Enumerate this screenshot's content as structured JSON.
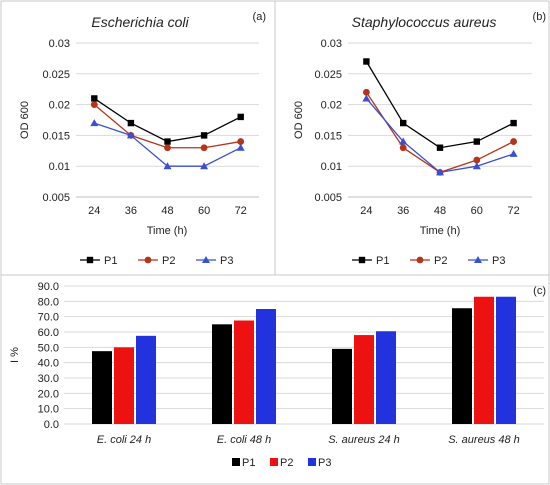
{
  "colors": {
    "P1": "#000000",
    "P2": "#b5341a",
    "P3": "#3a4fd1",
    "bar_P1": "#000000",
    "bar_P2": "#ee1111",
    "bar_P3": "#2233dd"
  },
  "chart_data": [
    {
      "type": "line",
      "panel_label": "(a)",
      "title": "Escherichia coli",
      "xlabel": "Time (h)",
      "ylabel": "OD 600",
      "categories": [
        "24",
        "36",
        "48",
        "60",
        "72"
      ],
      "y_ticks": [
        "0.005",
        "0.01",
        "0.015",
        "0.02",
        "0.025",
        "0.03"
      ],
      "ylim": [
        0.005,
        0.03
      ],
      "grid": true,
      "legend": "bottom",
      "series": [
        {
          "name": "P1",
          "values": [
            0.021,
            0.017,
            0.014,
            0.015,
            0.018
          ]
        },
        {
          "name": "P2",
          "values": [
            0.02,
            0.015,
            0.013,
            0.013,
            0.014
          ]
        },
        {
          "name": "P3",
          "values": [
            0.017,
            0.015,
            0.01,
            0.01,
            0.013
          ]
        }
      ]
    },
    {
      "type": "line",
      "panel_label": "(b)",
      "title": "Staphylococcus aureus",
      "xlabel": "Time (h)",
      "ylabel": "OD 600",
      "categories": [
        "24",
        "36",
        "48",
        "60",
        "72"
      ],
      "y_ticks": [
        "0.005",
        "0.01",
        "0.015",
        "0.02",
        "0.025",
        "0.03"
      ],
      "ylim": [
        0.005,
        0.03
      ],
      "grid": true,
      "legend": "bottom",
      "series": [
        {
          "name": "P1",
          "values": [
            0.027,
            0.017,
            0.013,
            0.014,
            0.017
          ]
        },
        {
          "name": "P2",
          "values": [
            0.022,
            0.013,
            0.009,
            0.011,
            0.014
          ]
        },
        {
          "name": "P3",
          "values": [
            0.021,
            0.014,
            0.009,
            0.01,
            0.012
          ]
        }
      ]
    },
    {
      "type": "bar",
      "panel_label": "(c)",
      "title": "",
      "xlabel": "",
      "ylabel": "I %",
      "categories": [
        "E. coli 24 h",
        "E. coli 48 h",
        "S. aureus 24 h",
        "S. aureus 48 h"
      ],
      "y_ticks": [
        "0.0",
        "10.0",
        "20.0",
        "30.0",
        "40.0",
        "50.0",
        "60.0",
        "70.0",
        "80.0",
        "90.0"
      ],
      "ylim": [
        0,
        90
      ],
      "grid": true,
      "legend": "bottom",
      "series": [
        {
          "name": "P1",
          "values": [
            47.5,
            65.0,
            49.0,
            75.5
          ]
        },
        {
          "name": "P2",
          "values": [
            50.0,
            67.5,
            58.0,
            83.0
          ]
        },
        {
          "name": "P3",
          "values": [
            57.5,
            75.0,
            60.5,
            83.0
          ]
        }
      ]
    }
  ]
}
